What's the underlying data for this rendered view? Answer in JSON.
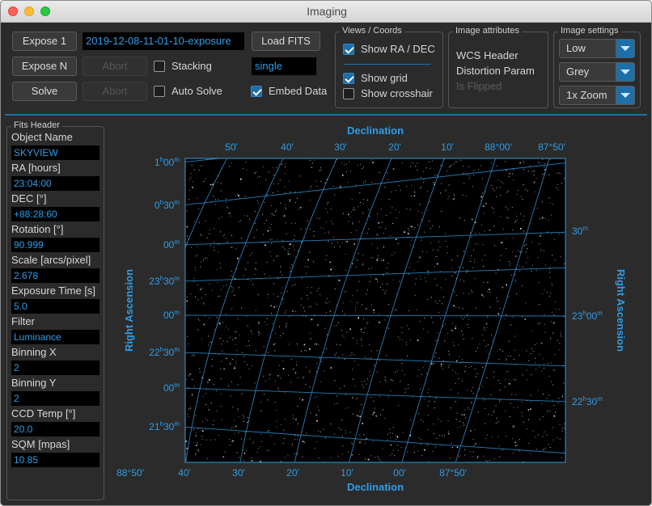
{
  "window": {
    "title": "Imaging"
  },
  "toolbar": {
    "expose1": "Expose 1",
    "exposeN": "Expose N",
    "solve": "Solve",
    "abort1": "Abort",
    "abort2": "Abort",
    "filename": "2019-12-08-11-01-10-exposure",
    "load_fits": "Load FITS",
    "stacking_label": "Stacking",
    "stacking_checked": false,
    "auto_solve_label": "Auto Solve",
    "auto_solve_checked": false,
    "mode_value": "single",
    "embed_label": "Embed Data",
    "embed_checked": true
  },
  "views": {
    "title": "Views / Coords",
    "show_radec": "Show RA / DEC",
    "show_radec_checked": true,
    "show_grid": "Show grid",
    "show_grid_checked": true,
    "show_crosshair": "Show crosshair",
    "show_crosshair_checked": false
  },
  "attributes": {
    "title": "Image attributes",
    "wcs": "WCS Header",
    "distortion": "Distortion Param",
    "flipped": "Is Flipped"
  },
  "settings": {
    "title": "Image settings",
    "stretch": "Low",
    "color": "Grey",
    "zoom": "1x Zoom"
  },
  "fits": {
    "title": "Fits Header",
    "items": [
      {
        "label": "Object Name",
        "value": "SKYVIEW"
      },
      {
        "label": "RA [hours]",
        "value": "23:04:00"
      },
      {
        "label": "DEC [°]",
        "value": "+88:28:60"
      },
      {
        "label": "Rotation [°]",
        "value": "90.999"
      },
      {
        "label": "Scale [arcs/pixel]",
        "value": "2.678"
      },
      {
        "label": "Exposure Time [s]",
        "value": "5.0"
      },
      {
        "label": "Filter",
        "value": "Luminance"
      },
      {
        "label": "Binning X",
        "value": "2"
      },
      {
        "label": "Binning Y",
        "value": "2"
      },
      {
        "label": "CCD Temp [°]",
        "value": "20.0"
      },
      {
        "label": "SQM [mpas]",
        "value": "10.85"
      }
    ]
  },
  "plot": {
    "accent": "#2e9ce6",
    "top_axis_title": "Declination",
    "bottom_axis_title": "Declination",
    "left_axis_title": "Right Ascension",
    "right_axis_title": "Right Ascension",
    "top_ticks": [
      "50'",
      "40'",
      "30'",
      "20'",
      "10'",
      "88°00'",
      "87°50'"
    ],
    "bottom_ticks": [
      "88°50'",
      "40'",
      "30'",
      "20'",
      "10'",
      "00'",
      "87°50'"
    ],
    "left_ticks": [
      {
        "main": "1",
        "sup": "h",
        "rest": "00",
        "sup2": "m"
      },
      {
        "main": "0",
        "sup": "h",
        "rest": "30",
        "sup2": "m"
      },
      {
        "main": "",
        "sup": "",
        "rest": "00",
        "sup2": "m"
      },
      {
        "main": "23",
        "sup": "h",
        "rest": "30",
        "sup2": "m"
      },
      {
        "main": "",
        "sup": "",
        "rest": "00",
        "sup2": "m"
      },
      {
        "main": "22",
        "sup": "h",
        "rest": "30",
        "sup2": "m"
      },
      {
        "main": "",
        "sup": "",
        "rest": "00",
        "sup2": "m"
      },
      {
        "main": "21",
        "sup": "h",
        "rest": "30",
        "sup2": "m"
      }
    ],
    "right_ticks": [
      {
        "main": "30",
        "sup": "m"
      },
      {
        "main": "23",
        "sup": "h",
        "rest": "00",
        "sup2": "m"
      },
      {
        "main": "22",
        "sup": "h",
        "rest": "30",
        "sup2": "m"
      }
    ]
  }
}
